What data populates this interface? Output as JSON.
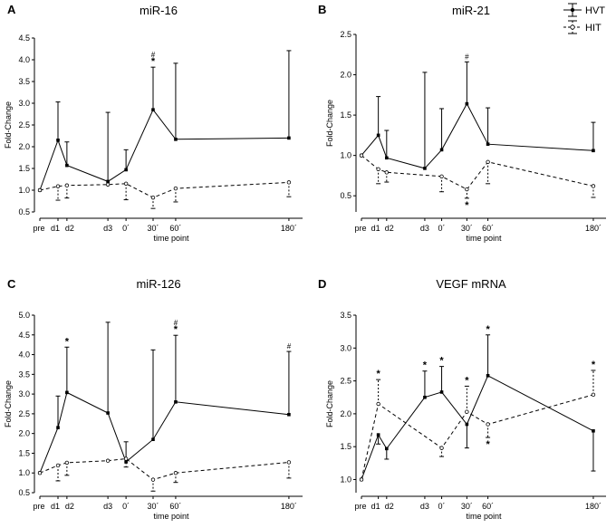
{
  "x_ticks": [
    "pre",
    "d1",
    "d2",
    "d3",
    "0´",
    "30´",
    "60´",
    "180´"
  ],
  "legend": {
    "entries": [
      {
        "label": "HVT",
        "style": "solid"
      },
      {
        "label": "HIT",
        "style": "dashed"
      }
    ]
  },
  "chart_data": [
    {
      "panel": "A",
      "title": "miR-16",
      "type": "line",
      "xlabel": "time point",
      "ylabel": "Fold-Change",
      "ylim": [
        0.5,
        4.5
      ],
      "yticks": [
        0.5,
        1.0,
        1.5,
        2.0,
        2.5,
        3.0,
        3.5,
        4.0,
        4.5
      ],
      "categories": [
        "pre",
        "d1",
        "d2",
        "d3",
        "0´",
        "30´",
        "60´",
        "180´"
      ],
      "series": [
        {
          "name": "HVT",
          "values": [
            1.0,
            2.15,
            1.57,
            1.2,
            1.47,
            2.85,
            2.17,
            2.2
          ],
          "err": [
            null,
            3.03,
            2.11,
            2.79,
            1.93,
            3.83,
            3.92,
            4.21
          ]
        },
        {
          "name": "HIT",
          "values": [
            1.0,
            1.09,
            1.11,
            1.13,
            1.15,
            0.83,
            1.04,
            1.18
          ],
          "err": [
            null,
            0.77,
            0.82,
            null,
            0.78,
            0.58,
            0.73,
            0.85
          ]
        }
      ],
      "annotations": [
        {
          "x": "30´",
          "y": 3.83,
          "text": "*",
          "pos": "above",
          "series": "HVT"
        },
        {
          "x": "30´",
          "y": 3.83,
          "text": "#",
          "pos": "above2",
          "series": "HVT"
        }
      ]
    },
    {
      "panel": "B",
      "title": "miR-21",
      "type": "line",
      "xlabel": "time point",
      "ylabel": "Fold-Change",
      "ylim": [
        0.3,
        2.5
      ],
      "yticks": [
        0.5,
        1.0,
        1.5,
        2.0,
        2.5
      ],
      "categories": [
        "pre",
        "d1",
        "d2",
        "d3",
        "0´",
        "30´",
        "60´",
        "180´"
      ],
      "series": [
        {
          "name": "HVT",
          "values": [
            1.0,
            1.25,
            0.97,
            0.84,
            1.07,
            1.64,
            1.14,
            1.06
          ],
          "err": [
            null,
            1.73,
            1.31,
            2.03,
            1.58,
            2.16,
            1.59,
            1.41
          ]
        },
        {
          "name": "HIT",
          "values": [
            1.0,
            0.83,
            0.79,
            null,
            0.74,
            0.58,
            0.92,
            0.62
          ],
          "err": [
            null,
            0.65,
            0.67,
            null,
            0.55,
            0.47,
            0.65,
            0.48
          ]
        }
      ],
      "annotations": [
        {
          "x": "30´",
          "y": 2.16,
          "text": "#",
          "pos": "above",
          "series": "HVT"
        },
        {
          "x": "30´",
          "y": 0.47,
          "text": "*",
          "pos": "below",
          "series": "HIT"
        }
      ]
    },
    {
      "panel": "C",
      "title": "miR-126",
      "type": "line",
      "xlabel": "time point",
      "ylabel": "Fold-Change",
      "ylim": [
        0.5,
        5.0
      ],
      "yticks": [
        0.5,
        1.0,
        1.5,
        2.0,
        2.5,
        3.0,
        3.5,
        4.0,
        4.5,
        5.0
      ],
      "categories": [
        "pre",
        "d1",
        "d2",
        "d3",
        "0´",
        "30´",
        "60´",
        "180´"
      ],
      "series": [
        {
          "name": "HVT",
          "values": [
            1.0,
            2.15,
            3.04,
            2.52,
            1.28,
            1.85,
            2.8,
            2.48
          ],
          "err": [
            null,
            2.95,
            4.19,
            4.82,
            1.79,
            4.12,
            4.49,
            4.08
          ]
        },
        {
          "name": "HIT",
          "values": [
            1.0,
            1.19,
            1.26,
            1.31,
            1.36,
            0.83,
            1.0,
            1.27
          ],
          "err": [
            null,
            0.8,
            0.94,
            null,
            1.15,
            0.54,
            0.76,
            0.87
          ]
        }
      ],
      "annotations": [
        {
          "x": "d2",
          "y": 4.19,
          "text": "*",
          "pos": "above",
          "series": "HVT"
        },
        {
          "x": "60´",
          "y": 4.49,
          "text": "*",
          "pos": "above",
          "series": "HVT"
        },
        {
          "x": "60´",
          "y": 4.49,
          "text": "#",
          "pos": "above2",
          "series": "HVT"
        },
        {
          "x": "180´",
          "y": 4.08,
          "text": "#",
          "pos": "above",
          "series": "HVT"
        }
      ]
    },
    {
      "panel": "D",
      "title": "VEGF mRNA",
      "type": "line",
      "xlabel": "time point",
      "ylabel": "Fold-Change",
      "ylim": [
        0.8,
        3.5
      ],
      "yticks": [
        1.0,
        1.5,
        2.0,
        2.5,
        3.0,
        3.5
      ],
      "categories": [
        "pre",
        "d1",
        "d2",
        "d3",
        "0´",
        "30´",
        "60´",
        "180´"
      ],
      "series": [
        {
          "name": "HVT",
          "values": [
            1.0,
            1.68,
            1.47,
            2.25,
            2.33,
            1.84,
            2.58,
            1.74
          ],
          "err": [
            null,
            1.54,
            1.31,
            2.65,
            2.72,
            1.48,
            3.2,
            1.13
          ]
        },
        {
          "name": "HIT",
          "values": [
            1.0,
            2.15,
            null,
            null,
            1.48,
            2.03,
            1.84,
            2.29
          ],
          "err": [
            null,
            2.52,
            null,
            null,
            1.35,
            2.42,
            1.64,
            2.66
          ]
        }
      ],
      "annotations": [
        {
          "x": "d1",
          "y": 2.52,
          "text": "*",
          "pos": "above",
          "series": "HIT"
        },
        {
          "x": "d3",
          "y": 2.65,
          "text": "*",
          "pos": "above",
          "series": "HVT"
        },
        {
          "x": "0´",
          "y": 2.72,
          "text": "*",
          "pos": "above",
          "series": "HVT"
        },
        {
          "x": "30´",
          "y": 2.42,
          "text": "*",
          "pos": "above",
          "series": "HIT"
        },
        {
          "x": "60´",
          "y": 3.2,
          "text": "*",
          "pos": "above",
          "series": "HVT"
        },
        {
          "x": "60´",
          "y": 1.64,
          "text": "*",
          "pos": "below",
          "series": "HIT"
        },
        {
          "x": "180´",
          "y": 2.66,
          "text": "*",
          "pos": "above",
          "series": "HIT"
        }
      ]
    }
  ]
}
